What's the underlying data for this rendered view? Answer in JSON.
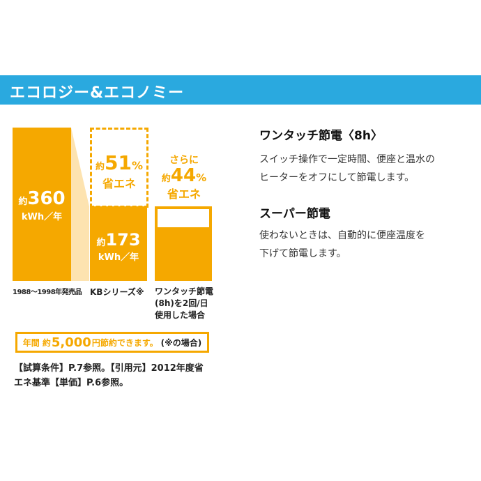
{
  "banner": {
    "title": "エコロジー&エコノミー"
  },
  "chart": {
    "bar1": {
      "prefix": "約",
      "value": "360",
      "unit": "kWh／年",
      "label": "1988～1998年発売品"
    },
    "bar2": {
      "prefix": "約",
      "value": "173",
      "unit": "kWh／年",
      "label": "KBシリーズ※",
      "saving_prefix": "約",
      "saving_value": "51",
      "saving_pct": "%",
      "saving_text": "省エネ"
    },
    "bar3": {
      "label_line1": "ワンタッチ節電",
      "label_line2": "(8h)を2回/日",
      "label_line3": "使用した場合",
      "saving_top": "さらに",
      "saving_prefix": "約",
      "saving_value": "44",
      "saving_pct": "%",
      "saving_text": "省エネ"
    }
  },
  "saving_box": {
    "pre": "年間 約",
    "amount": "5,000",
    "unit": "円",
    "mid": " 節約できます。",
    "note": "(※の場合)"
  },
  "conditions": {
    "line1": "【試算条件】P.7参照。【引用元】2012年度省",
    "line2": "エネ基準【単価】P.6参照。"
  },
  "features": [
    {
      "title": "ワンタッチ節電〈8h〉",
      "line1": "スイッチ操作で一定時間、便座と温水の",
      "line2": "ヒーターをオフにして節電します。"
    },
    {
      "title": "スーパー節電",
      "line1": "使わないときは、自動的に便座温度を",
      "line2": "下げて節電します。"
    }
  ],
  "colors": {
    "banner": "#2aa9df",
    "accent": "#f5a800"
  }
}
